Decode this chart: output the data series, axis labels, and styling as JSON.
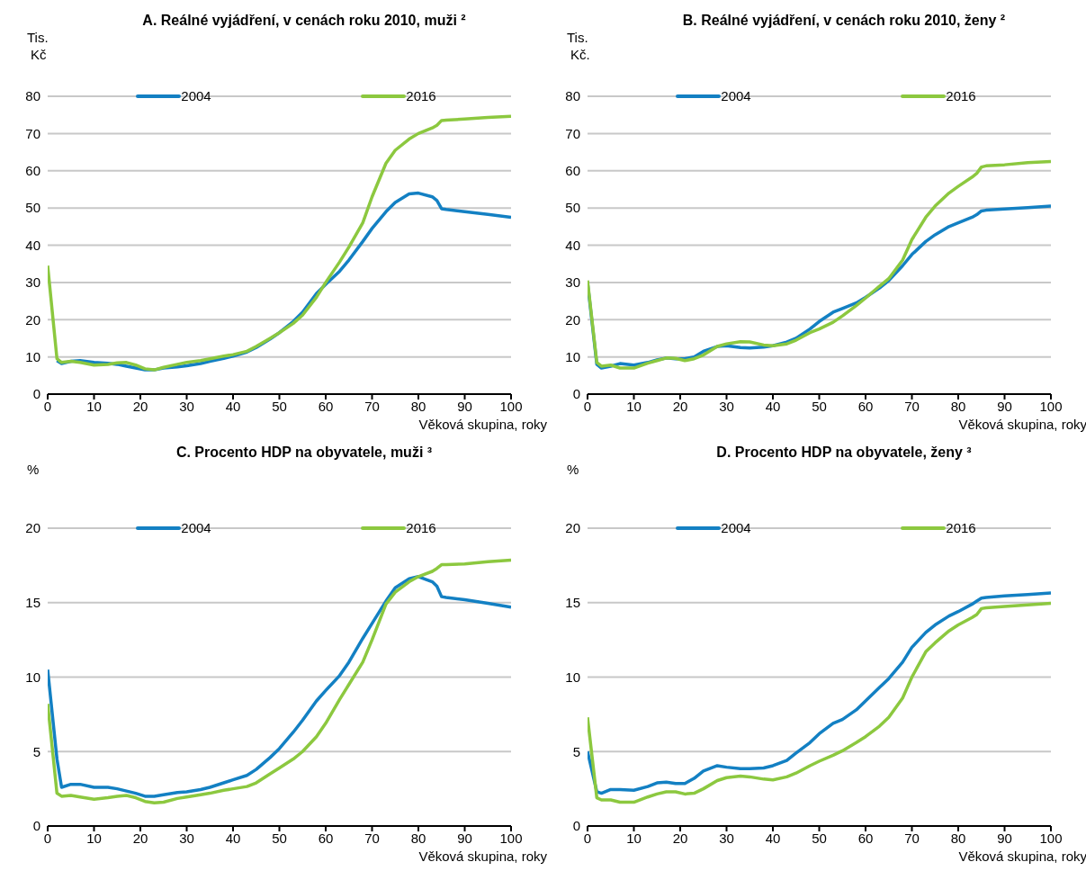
{
  "chart_data": [
    {
      "type": "line",
      "title": "A. Reálné vyjádření, v cenách roku 2010, muži ²",
      "ylabel": "Tis.\nKč",
      "xlabel": "Věková skupina, roky",
      "x": [
        0,
        2,
        3,
        5,
        7,
        10,
        13,
        15,
        17,
        19,
        21,
        23,
        25,
        28,
        30,
        33,
        35,
        38,
        40,
        43,
        45,
        48,
        50,
        53,
        55,
        58,
        60,
        63,
        65,
        68,
        70,
        73,
        75,
        78,
        80,
        83,
        84,
        85,
        86,
        90,
        95,
        100
      ],
      "xlim": [
        0,
        100
      ],
      "xticks": [
        0,
        10,
        20,
        30,
        40,
        50,
        60,
        70,
        80,
        90,
        100
      ],
      "ylim": [
        0,
        80
      ],
      "yticks": [
        0,
        10,
        20,
        30,
        40,
        50,
        60,
        70,
        80
      ],
      "grid": "y",
      "legend": "top",
      "series": [
        {
          "name": "2004",
          "color": "#1380c3",
          "values": [
            null,
            9,
            8.2,
            8.8,
            9,
            8.5,
            8.3,
            8,
            7.5,
            7,
            6.5,
            6.5,
            7,
            7.3,
            7.6,
            8.2,
            8.8,
            9.6,
            10.2,
            11.3,
            12.5,
            14.8,
            16.5,
            19.5,
            22,
            27,
            29.5,
            33,
            36,
            41,
            44.5,
            49,
            51.5,
            53.8,
            54,
            53,
            52,
            49.8,
            49.6,
            49,
            48.3,
            47.5
          ]
        },
        {
          "name": "2016",
          "color": "#8cc83f",
          "values": [
            34.5,
            9.5,
            8.5,
            8.8,
            8.5,
            7.8,
            8,
            8.4,
            8.5,
            7.8,
            6.8,
            6.5,
            7.2,
            8,
            8.5,
            9,
            9.5,
            10.2,
            10.6,
            11.5,
            12.8,
            15,
            16.5,
            19,
            21.2,
            26,
            30,
            35.5,
            39.5,
            46,
            53,
            62,
            65.5,
            68.5,
            70,
            71.5,
            72.2,
            73.5,
            73.6,
            73.9,
            74.3,
            74.6
          ]
        }
      ]
    },
    {
      "type": "line",
      "title": "B. Reálné vyjádření, v cenách roku 2010, ženy ²",
      "ylabel": "Tis.\nKč.",
      "xlabel": "Věková skupina, roky",
      "x": [
        0,
        2,
        3,
        5,
        7,
        10,
        13,
        15,
        17,
        19,
        21,
        23,
        25,
        28,
        30,
        33,
        35,
        38,
        40,
        43,
        45,
        48,
        50,
        53,
        55,
        58,
        60,
        63,
        65,
        68,
        70,
        73,
        75,
        78,
        80,
        83,
        84,
        85,
        86,
        90,
        95,
        100
      ],
      "xlim": [
        0,
        100
      ],
      "xticks": [
        0,
        10,
        20,
        30,
        40,
        50,
        60,
        70,
        80,
        90,
        100
      ],
      "ylim": [
        0,
        80
      ],
      "yticks": [
        0,
        10,
        20,
        30,
        40,
        50,
        60,
        70,
        80
      ],
      "grid": "y",
      "legend": "top",
      "series": [
        {
          "name": "2004",
          "color": "#1380c3",
          "values": [
            30,
            8,
            7,
            7.5,
            8.2,
            7.8,
            8.5,
            9.2,
            9.7,
            9.5,
            9.5,
            10,
            11.5,
            12.8,
            13,
            12.5,
            12.4,
            12.6,
            13,
            14,
            15,
            17.5,
            19.5,
            22,
            23,
            24.5,
            26,
            28.5,
            30.5,
            34.5,
            37.5,
            41,
            42.8,
            45,
            46,
            47.5,
            48.2,
            49.2,
            49.4,
            49.7,
            50.1,
            50.5
          ]
        },
        {
          "name": "2016",
          "color": "#8cc83f",
          "values": [
            30.5,
            8.5,
            7.5,
            7.8,
            7,
            7,
            8.3,
            9,
            9.7,
            9.6,
            9,
            9.5,
            10.5,
            12.8,
            13.5,
            14.1,
            14,
            13.2,
            13,
            13.5,
            14.5,
            16.5,
            17.5,
            19.3,
            21,
            23.8,
            25.8,
            29,
            31,
            36,
            41.5,
            47.5,
            50.5,
            54,
            55.8,
            58.3,
            59.3,
            61,
            61.3,
            61.6,
            62.2,
            62.5
          ]
        }
      ]
    },
    {
      "type": "line",
      "title": "C. Procento HDP na obyvatele, muži ³",
      "ylabel": "%",
      "xlabel": "Věková skupina, roky",
      "x": [
        0,
        2,
        3,
        5,
        7,
        10,
        13,
        15,
        17,
        19,
        21,
        23,
        25,
        28,
        30,
        33,
        35,
        38,
        40,
        43,
        45,
        48,
        50,
        53,
        55,
        58,
        60,
        63,
        65,
        68,
        70,
        73,
        75,
        78,
        80,
        83,
        84,
        85,
        86,
        90,
        95,
        100
      ],
      "xlim": [
        0,
        100
      ],
      "xticks": [
        0,
        10,
        20,
        30,
        40,
        50,
        60,
        70,
        80,
        90,
        100
      ],
      "ylim": [
        0,
        20
      ],
      "yticks": [
        0,
        5,
        10,
        15,
        20
      ],
      "grid": "y",
      "legend": "top",
      "series": [
        {
          "name": "2004",
          "color": "#1380c3",
          "values": [
            10.5,
            4.5,
            2.6,
            2.8,
            2.8,
            2.6,
            2.6,
            2.5,
            2.35,
            2.2,
            2,
            2,
            2.1,
            2.25,
            2.3,
            2.45,
            2.6,
            2.9,
            3.1,
            3.4,
            3.8,
            4.6,
            5.2,
            6.3,
            7.1,
            8.4,
            9.1,
            10.1,
            11,
            12.6,
            13.6,
            15.1,
            16,
            16.6,
            16.75,
            16.4,
            16.1,
            15.4,
            15.35,
            15.2,
            14.95,
            14.7
          ]
        },
        {
          "name": "2016",
          "color": "#8cc83f",
          "values": [
            8.2,
            2.2,
            2,
            2.05,
            1.95,
            1.8,
            1.9,
            2,
            2.05,
            1.9,
            1.65,
            1.55,
            1.6,
            1.85,
            1.95,
            2.1,
            2.2,
            2.4,
            2.5,
            2.65,
            2.9,
            3.5,
            3.9,
            4.5,
            5,
            6,
            6.9,
            8.5,
            9.5,
            11,
            12.5,
            14.9,
            15.7,
            16.4,
            16.75,
            17.1,
            17.3,
            17.55,
            17.55,
            17.6,
            17.75,
            17.85
          ]
        }
      ]
    },
    {
      "type": "line",
      "title": "D. Procento HDP na obyvatele, ženy ³",
      "ylabel": "%",
      "xlabel": "Věková skupina, roky",
      "x": [
        0,
        2,
        3,
        5,
        7,
        10,
        13,
        15,
        17,
        19,
        21,
        23,
        25,
        28,
        30,
        33,
        35,
        38,
        40,
        43,
        45,
        48,
        50,
        53,
        55,
        58,
        60,
        63,
        65,
        68,
        70,
        73,
        75,
        78,
        80,
        83,
        84,
        85,
        86,
        90,
        95,
        100
      ],
      "xlim": [
        0,
        100
      ],
      "xticks": [
        0,
        10,
        20,
        30,
        40,
        50,
        60,
        70,
        80,
        90,
        100
      ],
      "ylim": [
        0,
        20
      ],
      "yticks": [
        0,
        5,
        10,
        15,
        20
      ],
      "grid": "y",
      "legend": "top",
      "series": [
        {
          "name": "2004",
          "color": "#1380c3",
          "values": [
            5,
            2.3,
            2.2,
            2.45,
            2.45,
            2.4,
            2.65,
            2.9,
            2.95,
            2.85,
            2.85,
            3.2,
            3.7,
            4.05,
            3.95,
            3.85,
            3.85,
            3.9,
            4.05,
            4.4,
            4.9,
            5.6,
            6.2,
            6.9,
            7.15,
            7.8,
            8.4,
            9.3,
            9.9,
            11,
            12,
            13,
            13.5,
            14.1,
            14.4,
            14.9,
            15.1,
            15.3,
            15.35,
            15.45,
            15.55,
            15.65
          ]
        },
        {
          "name": "2016",
          "color": "#8cc83f",
          "values": [
            7.3,
            1.9,
            1.75,
            1.75,
            1.6,
            1.6,
            1.95,
            2.15,
            2.3,
            2.3,
            2.15,
            2.2,
            2.5,
            3.05,
            3.25,
            3.35,
            3.3,
            3.15,
            3.1,
            3.3,
            3.55,
            4.05,
            4.35,
            4.75,
            5.05,
            5.6,
            6,
            6.7,
            7.3,
            8.6,
            10,
            11.7,
            12.3,
            13.1,
            13.5,
            14,
            14.2,
            14.6,
            14.65,
            14.75,
            14.85,
            14.95
          ]
        }
      ]
    }
  ]
}
